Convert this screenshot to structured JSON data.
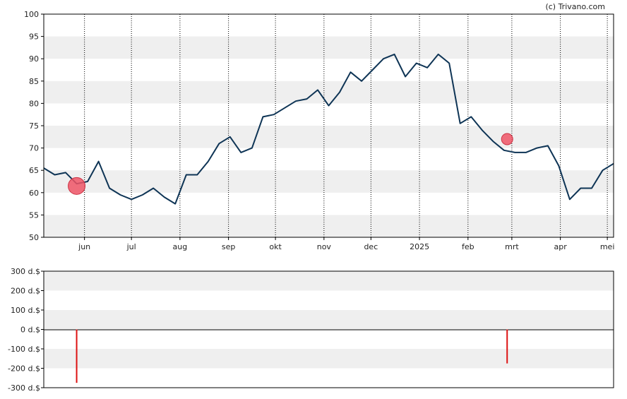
{
  "copyright": "(c) Trivano.com",
  "colors": {
    "band": "#efefef",
    "line": "#0e3455",
    "marker": "#ee5566",
    "bar": "#dd1111",
    "frame": "#000000"
  },
  "chart_data": [
    {
      "type": "line",
      "title": "",
      "xlabel": "",
      "ylabel": "",
      "ylim": [
        50,
        100
      ],
      "yticks": [
        50,
        55,
        60,
        65,
        70,
        75,
        80,
        85,
        90,
        95,
        100
      ],
      "grid": "vertical dotted lines at month boundaries, alternating horizontal bands",
      "xticks": [
        "jun",
        "jul",
        "aug",
        "sep",
        "okt",
        "nov",
        "dec",
        "2025",
        "feb",
        "mrt",
        "apr",
        "mei"
      ],
      "x": [
        "2024-05-06",
        "2024-05-13",
        "2024-05-20",
        "2024-05-27",
        "2024-06-03",
        "2024-06-10",
        "2024-06-17",
        "2024-06-24",
        "2024-07-01",
        "2024-07-08",
        "2024-07-15",
        "2024-07-22",
        "2024-07-29",
        "2024-08-05",
        "2024-08-12",
        "2024-08-19",
        "2024-08-26",
        "2024-09-02",
        "2024-09-09",
        "2024-09-16",
        "2024-09-23",
        "2024-09-30",
        "2024-10-07",
        "2024-10-14",
        "2024-10-21",
        "2024-10-28",
        "2024-11-04",
        "2024-11-11",
        "2024-11-18",
        "2024-11-25",
        "2024-12-02",
        "2024-12-09",
        "2024-12-16",
        "2024-12-23",
        "2024-12-30",
        "2025-01-06",
        "2025-01-13",
        "2025-01-20",
        "2025-01-27",
        "2025-02-03",
        "2025-02-10",
        "2025-02-17",
        "2025-02-24",
        "2025-03-03",
        "2025-03-10",
        "2025-03-17",
        "2025-03-24",
        "2025-03-31",
        "2025-04-07",
        "2025-04-14",
        "2025-04-21",
        "2025-04-28",
        "2025-05-05"
      ],
      "series": [
        {
          "values": [
            65.5,
            64,
            64.5,
            62,
            62.5,
            67,
            61,
            59.5,
            58.5,
            59.5,
            61,
            59,
            57.5,
            64,
            64,
            67,
            71,
            72.5,
            69,
            70,
            77,
            77.5,
            79,
            80.5,
            81,
            83,
            79.5,
            82.5,
            87,
            85,
            87.5,
            90,
            91,
            86,
            89,
            88,
            91,
            89,
            75.5,
            77,
            74,
            71.5,
            69.5,
            69,
            69,
            70,
            70.5,
            66,
            58.5,
            61,
            61,
            65,
            66.5
          ]
        }
      ],
      "markers": [
        {
          "x": "2024-05-27",
          "y": 61.5,
          "size": "large"
        },
        {
          "x": "2025-02-26",
          "y": 72,
          "size": "small"
        }
      ]
    },
    {
      "type": "bar",
      "title": "",
      "xlabel": "",
      "ylabel": "",
      "ylim": [
        -300,
        300
      ],
      "yticks": [
        "300 d.$",
        "200 d.$",
        "100 d.$",
        "0 d.$",
        "-100 d.$",
        "-200 d.$",
        "-300 d.$"
      ],
      "x": [
        "2024-05-27",
        "2025-02-26"
      ],
      "values": [
        -275,
        -175
      ],
      "unit": "d.$"
    }
  ]
}
